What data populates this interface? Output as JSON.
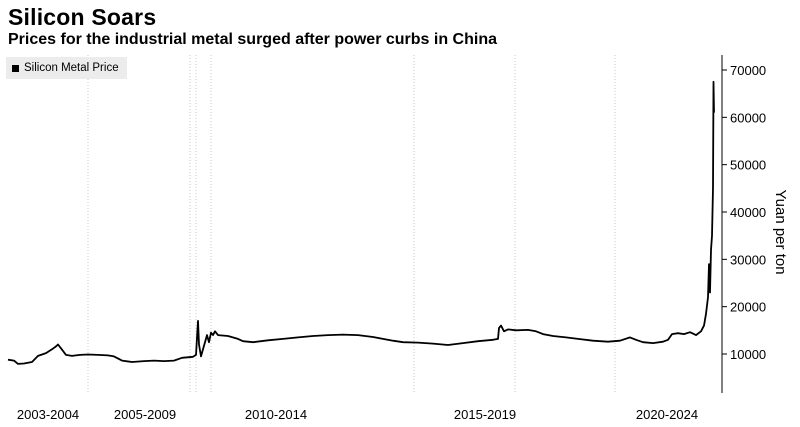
{
  "title": "Silicon Soars",
  "subtitle": "Prices for the industrial metal surged after power curbs in China",
  "legend": {
    "label": "Silicon Metal Price",
    "color": "#000000"
  },
  "chart_data": {
    "type": "line",
    "ylabel": "Yuan per ton",
    "ylim": [
      0,
      72000
    ],
    "yticks": [
      10000,
      20000,
      30000,
      40000,
      50000,
      60000,
      70000
    ],
    "ytick_labels": [
      "10000",
      "20000",
      "30000",
      "40000",
      "50000",
      "60000",
      "70000"
    ],
    "x_groups": [
      "2003-2004",
      "2005-2009",
      "2010-2014",
      "2015-2019",
      "2020-2024"
    ],
    "grid": "vertical",
    "axis_position": "right",
    "legend_position": "top-left",
    "series": [
      {
        "name": "Silicon Metal Price",
        "color": "#000000",
        "points": [
          [
            0,
            8800
          ],
          [
            6,
            8600
          ],
          [
            10,
            7900
          ],
          [
            16,
            8000
          ],
          [
            24,
            8300
          ],
          [
            30,
            9600
          ],
          [
            38,
            10200
          ],
          [
            44,
            11000
          ],
          [
            48,
            11600
          ],
          [
            50,
            12000
          ],
          [
            53,
            11200
          ],
          [
            58,
            9800
          ],
          [
            64,
            9600
          ],
          [
            72,
            9800
          ],
          [
            80,
            9900
          ],
          [
            90,
            9800
          ],
          [
            100,
            9700
          ],
          [
            106,
            9500
          ],
          [
            114,
            8600
          ],
          [
            124,
            8300
          ],
          [
            136,
            8500
          ],
          [
            146,
            8600
          ],
          [
            156,
            8500
          ],
          [
            166,
            8600
          ],
          [
            174,
            9200
          ],
          [
            185,
            9400
          ],
          [
            188,
            9800
          ],
          [
            190,
            17000
          ],
          [
            191,
            12000
          ],
          [
            193,
            9500
          ],
          [
            195,
            11000
          ],
          [
            197,
            12500
          ],
          [
            199,
            14000
          ],
          [
            201,
            12500
          ],
          [
            203,
            14500
          ],
          [
            205,
            14000
          ],
          [
            207,
            14800
          ],
          [
            210,
            14000
          ],
          [
            220,
            13800
          ],
          [
            230,
            13200
          ],
          [
            235,
            12700
          ],
          [
            245,
            12500
          ],
          [
            260,
            12900
          ],
          [
            275,
            13200
          ],
          [
            290,
            13500
          ],
          [
            305,
            13800
          ],
          [
            320,
            14000
          ],
          [
            335,
            14100
          ],
          [
            350,
            14000
          ],
          [
            365,
            13600
          ],
          [
            375,
            13200
          ],
          [
            385,
            12800
          ],
          [
            395,
            12500
          ],
          [
            410,
            12400
          ],
          [
            425,
            12200
          ],
          [
            440,
            11900
          ],
          [
            455,
            12300
          ],
          [
            470,
            12700
          ],
          [
            485,
            13000
          ],
          [
            490,
            13200
          ],
          [
            491,
            15500
          ],
          [
            493,
            16000
          ],
          [
            496,
            14800
          ],
          [
            500,
            15200
          ],
          [
            508,
            15000
          ],
          [
            520,
            15100
          ],
          [
            528,
            14800
          ],
          [
            535,
            14200
          ],
          [
            545,
            13800
          ],
          [
            558,
            13500
          ],
          [
            570,
            13200
          ],
          [
            585,
            12800
          ],
          [
            600,
            12600
          ],
          [
            612,
            12800
          ],
          [
            622,
            13500
          ],
          [
            628,
            13000
          ],
          [
            635,
            12500
          ],
          [
            645,
            12300
          ],
          [
            655,
            12600
          ],
          [
            660,
            13000
          ],
          [
            664,
            14200
          ],
          [
            670,
            14400
          ],
          [
            676,
            14200
          ],
          [
            682,
            14600
          ],
          [
            688,
            14000
          ],
          [
            693,
            14800
          ],
          [
            696,
            16000
          ],
          [
            698,
            18500
          ],
          [
            700,
            22000
          ],
          [
            701,
            29000
          ],
          [
            702,
            23000
          ],
          [
            703,
            32000
          ],
          [
            704,
            35000
          ],
          [
            705,
            45000
          ],
          [
            705.5,
            67500
          ],
          [
            706,
            61000
          ]
        ]
      }
    ]
  }
}
